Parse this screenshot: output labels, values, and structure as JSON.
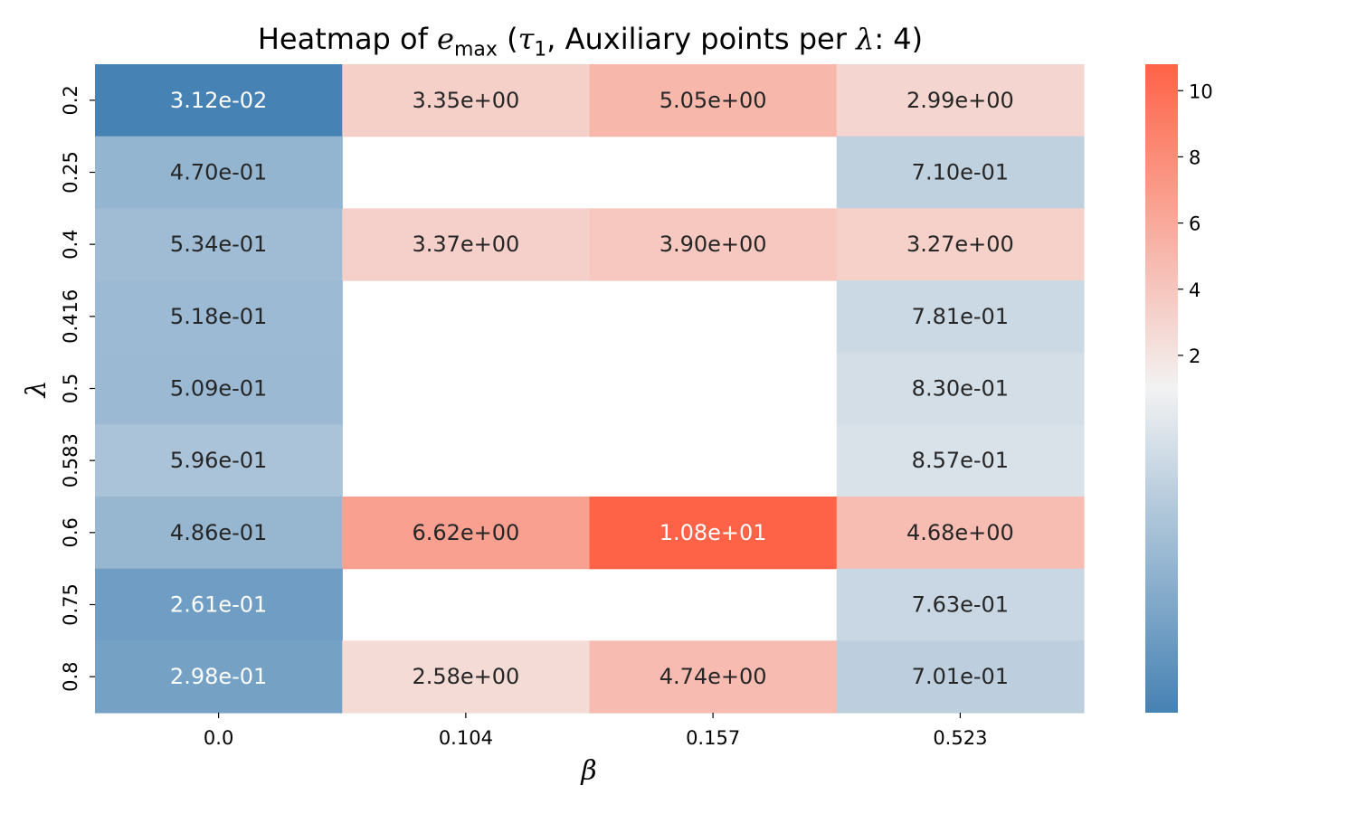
{
  "chart_data": {
    "type": "heatmap",
    "title": "Heatmap of e_max (τ_1, Auxiliary points per λ: 4)",
    "title_parts": {
      "prefix": "Heatmap of ",
      "var": "e",
      "var_sub": "max",
      "open": " (",
      "tau": "τ",
      "tau_sub": "1",
      "rest": ", Auxiliary points per ",
      "lambda": "λ",
      "suffix": ": 4)"
    },
    "xlabel": "β",
    "ylabel": "λ",
    "x_categories": [
      "0.0",
      "0.104",
      "0.157",
      "0.523"
    ],
    "y_categories": [
      "0.2",
      "0.25",
      "0.4",
      "0.416",
      "0.5",
      "0.583",
      "0.6",
      "0.75",
      "0.8"
    ],
    "values": [
      [
        0.0312,
        3.35,
        5.05,
        2.99
      ],
      [
        0.47,
        null,
        null,
        0.71
      ],
      [
        0.534,
        3.37,
        3.9,
        3.27
      ],
      [
        0.518,
        null,
        null,
        0.781
      ],
      [
        0.509,
        null,
        null,
        0.83
      ],
      [
        0.596,
        null,
        null,
        0.857
      ],
      [
        0.486,
        6.62,
        10.8,
        4.68
      ],
      [
        0.261,
        null,
        null,
        0.763
      ],
      [
        0.298,
        2.58,
        4.74,
        0.701
      ]
    ],
    "labels": [
      [
        "3.12e-02",
        "3.35e+00",
        "5.05e+00",
        "2.99e+00"
      ],
      [
        "4.70e-01",
        "",
        "",
        "7.10e-01"
      ],
      [
        "5.34e-01",
        "3.37e+00",
        "3.90e+00",
        "3.27e+00"
      ],
      [
        "5.18e-01",
        "",
        "",
        "7.81e-01"
      ],
      [
        "5.09e-01",
        "",
        "",
        "8.30e-01"
      ],
      [
        "5.96e-01",
        "",
        "",
        "8.57e-01"
      ],
      [
        "4.86e-01",
        "6.62e+00",
        "1.08e+01",
        "4.68e+00"
      ],
      [
        "2.61e-01",
        "",
        "",
        "7.63e-01"
      ],
      [
        "2.98e-01",
        "2.58e+00",
        "4.74e+00",
        "7.01e-01"
      ]
    ],
    "colorbar": {
      "ticks": [
        2,
        4,
        6,
        8,
        10
      ],
      "tick_labels": [
        "2",
        "4",
        "6",
        "8",
        "10"
      ],
      "vmin": 0.0312,
      "vmax": 10.8,
      "center": 1.0,
      "colors": {
        "low": "#4682b4",
        "mid": "#f2f2f2",
        "high": "#ff6347"
      }
    },
    "grid": false
  }
}
